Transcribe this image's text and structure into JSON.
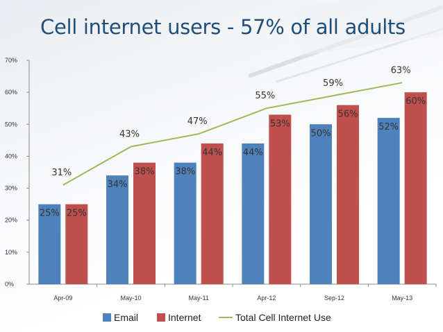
{
  "title": "Cell internet users - 57% of all adults",
  "chart_data": {
    "type": "bar",
    "categories": [
      "Apr-09",
      "May-10",
      "May-11",
      "Apr-12",
      "Sep-12",
      "May-13"
    ],
    "series": [
      {
        "name": "Email",
        "type": "bar",
        "color": "#4f81bd",
        "values": [
          25,
          34,
          38,
          44,
          50,
          52
        ]
      },
      {
        "name": "Internet",
        "type": "bar",
        "color": "#c0504d",
        "values": [
          25,
          38,
          44,
          53,
          56,
          60
        ]
      },
      {
        "name": "Total Cell Internet Use",
        "type": "line",
        "color": "#9bbb59",
        "values": [
          31,
          43,
          47,
          55,
          59,
          63
        ]
      }
    ],
    "yticks": [
      "0%",
      "10%",
      "20%",
      "30%",
      "40%",
      "50%",
      "60%",
      "70%"
    ],
    "ylim": [
      0,
      70
    ],
    "value_suffix": "%",
    "legend_position": "bottom",
    "grid": false
  }
}
